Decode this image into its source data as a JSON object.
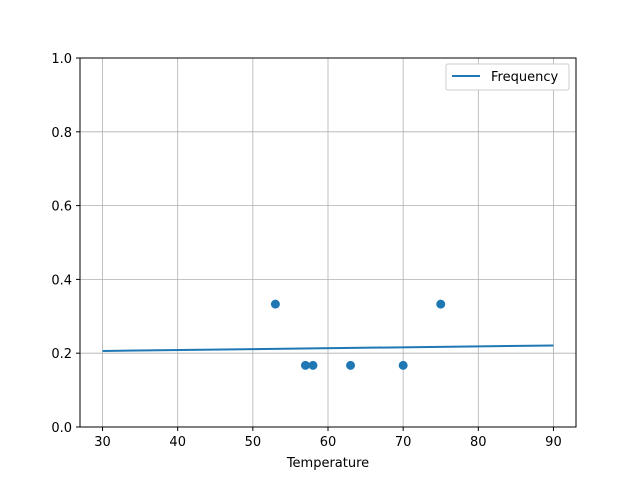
{
  "chart_data": {
    "type": "scatter",
    "title": "",
    "xlabel": "Temperature",
    "ylabel": "",
    "xlim": [
      27,
      93
    ],
    "ylim": [
      0,
      1.0
    ],
    "xticks": [
      30,
      40,
      50,
      60,
      70,
      80,
      90
    ],
    "xtick_labels": [
      "30",
      "40",
      "50",
      "60",
      "70",
      "80",
      "90"
    ],
    "yticks": [
      0,
      0.2,
      0.4,
      0.6,
      0.8,
      1.0
    ],
    "ytick_labels": [
      "0.0",
      "0.2",
      "0.4",
      "0.6",
      "0.8",
      "1.0"
    ],
    "grid": true,
    "legend": {
      "placement": "top-right",
      "entries": [
        "Frequency"
      ]
    },
    "color": "#1f77b4",
    "series": [
      {
        "name": "Frequency",
        "kind": "line",
        "x": [
          30,
          90
        ],
        "y": [
          0.206,
          0.221
        ]
      },
      {
        "kind": "scatter",
        "x": [
          53,
          57,
          58,
          63,
          70,
          75
        ],
        "y": [
          0.333,
          0.167,
          0.167,
          0.167,
          0.167,
          0.333
        ]
      }
    ]
  }
}
